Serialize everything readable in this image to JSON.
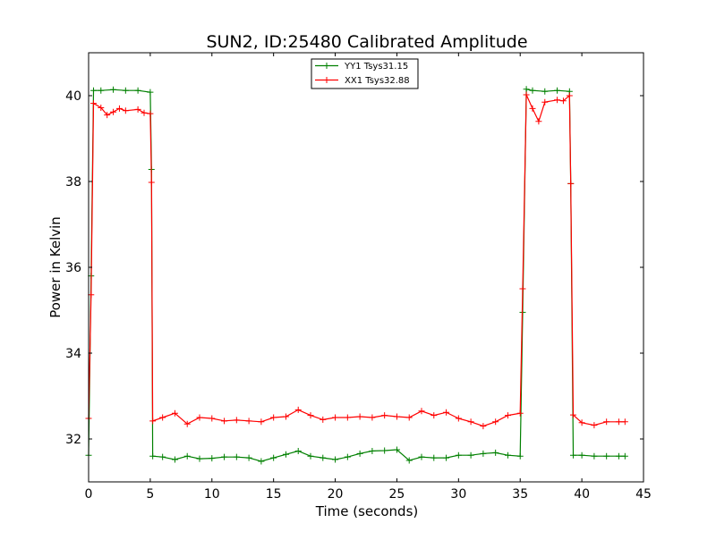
{
  "chart_data": {
    "type": "line",
    "title": "SUN2, ID:25480 Calibrated Amplitude",
    "xlabel": "Time (seconds)",
    "ylabel": "Power in Kelvin",
    "xlim": [
      0,
      45
    ],
    "ylim": [
      31,
      41
    ],
    "xticks": [
      0,
      5,
      10,
      15,
      20,
      25,
      30,
      35,
      40,
      45
    ],
    "yticks": [
      32,
      34,
      36,
      38,
      40
    ],
    "grid": false,
    "legend_position": "top-center",
    "marker": "+",
    "series": [
      {
        "name": "YY1 Tsys31.15",
        "color": "#008000",
        "x": [
          0,
          0.2,
          0.4,
          1,
          2,
          3,
          4,
          5,
          5.1,
          5.2,
          6,
          7,
          8,
          9,
          10,
          11,
          12,
          13,
          14,
          15,
          16,
          17,
          18,
          19,
          20,
          21,
          22,
          23,
          24,
          25,
          26,
          27,
          28,
          29,
          30,
          31,
          32,
          33,
          34,
          35,
          35.2,
          35.5,
          36,
          37,
          38,
          39,
          39.1,
          39.3,
          40,
          41,
          42,
          43,
          43.5
        ],
        "y": [
          31.62,
          35.8,
          40.12,
          40.12,
          40.14,
          40.12,
          40.12,
          40.08,
          38.28,
          31.6,
          31.58,
          31.52,
          31.6,
          31.54,
          31.55,
          31.58,
          31.58,
          31.56,
          31.48,
          31.56,
          31.64,
          31.72,
          31.6,
          31.56,
          31.52,
          31.58,
          31.66,
          31.72,
          31.73,
          31.75,
          31.5,
          31.58,
          31.56,
          31.56,
          31.62,
          31.62,
          31.66,
          31.68,
          31.62,
          31.6,
          34.95,
          40.15,
          40.12,
          40.1,
          40.12,
          40.1,
          37.95,
          31.62,
          31.62,
          31.6,
          31.6,
          31.6,
          31.6
        ]
      },
      {
        "name": "XX1 Tsys32.88",
        "color": "#ff0000",
        "x": [
          0,
          0.2,
          0.4,
          1,
          1.5,
          2,
          2.5,
          3,
          4,
          4.5,
          5,
          5.1,
          5.2,
          6,
          7,
          8,
          9,
          10,
          11,
          12,
          13,
          14,
          15,
          16,
          17,
          18,
          19,
          20,
          21,
          22,
          23,
          24,
          25,
          26,
          27,
          28,
          29,
          30,
          31,
          32,
          33,
          34,
          35,
          35.2,
          35.5,
          36,
          36.5,
          37,
          38,
          38.5,
          39,
          39.1,
          39.3,
          40,
          41,
          42,
          43,
          43.5
        ],
        "y": [
          32.48,
          35.36,
          39.82,
          39.72,
          39.55,
          39.62,
          39.7,
          39.65,
          39.68,
          39.6,
          39.58,
          37.98,
          32.42,
          32.5,
          32.6,
          32.35,
          32.5,
          32.48,
          32.42,
          32.44,
          32.42,
          32.4,
          32.5,
          32.52,
          32.68,
          32.55,
          32.45,
          32.5,
          32.5,
          32.52,
          32.5,
          32.55,
          32.52,
          32.5,
          32.65,
          32.55,
          32.62,
          32.48,
          32.4,
          32.3,
          32.4,
          32.55,
          32.6,
          35.5,
          40.02,
          39.7,
          39.4,
          39.85,
          39.9,
          39.88,
          40.0,
          37.95,
          32.56,
          32.38,
          32.32,
          32.4,
          32.4,
          32.4
        ]
      }
    ]
  }
}
